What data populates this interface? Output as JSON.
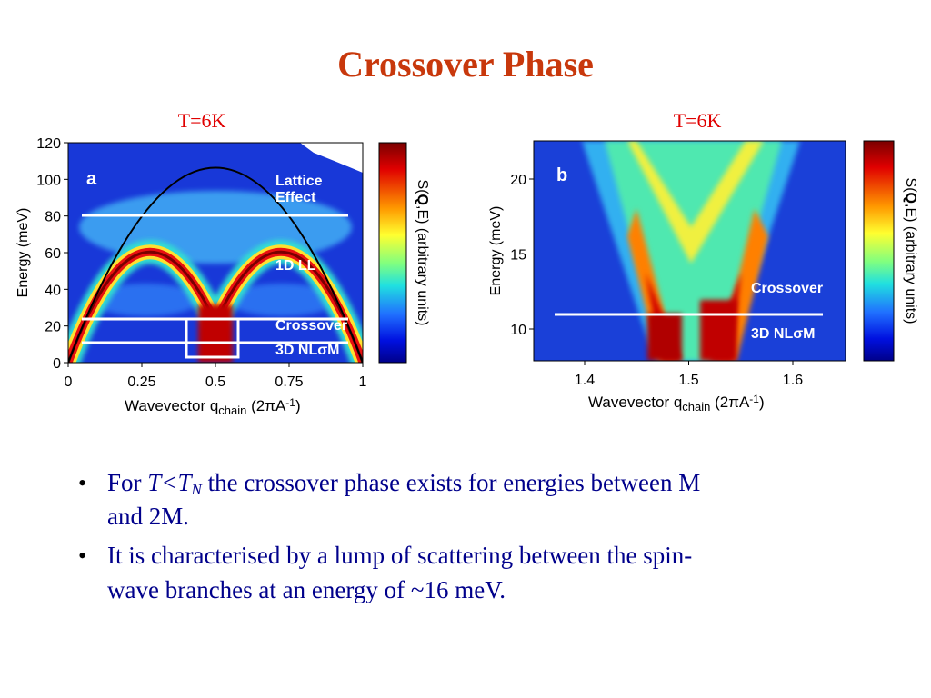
{
  "title": "Crossover Phase",
  "panels": [
    {
      "temperature": "T=6K",
      "letter": "a",
      "yticks": [
        "0",
        "20",
        "40",
        "60",
        "80",
        "100",
        "120"
      ],
      "xticks": [
        "0",
        "0.25",
        "0.5",
        "0.75",
        "1"
      ],
      "y_axis_label": "Energy (meV)",
      "x_axis_label": [
        "Wavevector q",
        "chain",
        " (2πA",
        "-1",
        ")"
      ],
      "colorbar_label": [
        "S(",
        "Q",
        ",E) (arbitrary units)"
      ],
      "annotations": [
        "Lattice",
        "Effect",
        "1D LL",
        "Crossover",
        "3D NLσM"
      ]
    },
    {
      "temperature": "T=6K",
      "letter": "b",
      "yticks": [
        "10",
        "15",
        "20"
      ],
      "xticks": [
        "1.4",
        "1.5",
        "1.6"
      ],
      "y_axis_label": "Energy (meV)",
      "x_axis_label": [
        "Wavevector q",
        "chain",
        " (2πA",
        "-1",
        ")"
      ],
      "colorbar_label": [
        "S(",
        "Q",
        ",E) (arbitrary units)"
      ],
      "annotations": [
        "Crossover",
        "3D NLσM"
      ]
    }
  ],
  "bullets": [
    [
      "For ",
      "T<T",
      "N",
      " the crossover phase exists for energies between M",
      "and 2M."
    ],
    [
      "It is characterised by a lump of scattering between the spin-",
      "wave branches at an energy of ~16 meV."
    ]
  ]
}
